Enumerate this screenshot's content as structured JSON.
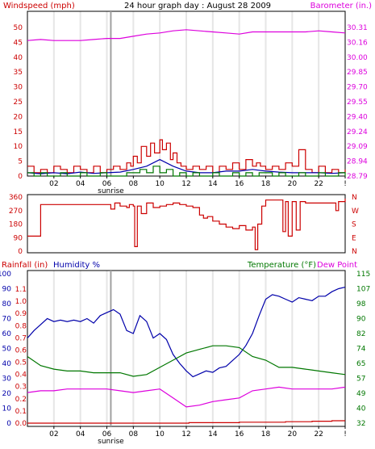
{
  "title": "24 hour graph day : August 28 2009",
  "colors": {
    "red": "#cc0000",
    "blue": "#0000aa",
    "green": "#007700",
    "magenta": "#dd00dd",
    "sunrise_bar": "#a0a0a0",
    "grid": "#e6e6e6",
    "frame": "#000000"
  },
  "x_axis": {
    "range": [
      0,
      24
    ],
    "tick_labels": [
      "02",
      "04",
      "06",
      "08",
      "10",
      "12",
      "14",
      "16",
      "18",
      "20",
      "22",
      "!"
    ],
    "tick_hours": [
      2,
      4,
      6,
      8,
      10,
      12,
      14,
      16,
      18,
      20,
      22,
      24
    ],
    "sunrise_label": "sunrise",
    "sunrise_hour": 6.3
  },
  "chart_data": [
    {
      "type": "line",
      "header_left": "Windspeed (mph)",
      "header_right": "Barometer (in.)",
      "left_axis": {
        "range": [
          0,
          50
        ],
        "tick_labels": [
          "50",
          "45",
          "40",
          "35",
          "30",
          "25",
          "20",
          "15",
          "10",
          "5",
          "0"
        ]
      },
      "right_axis": {
        "range": [
          28.79,
          30.31
        ],
        "tick_labels": [
          "30.31",
          "30.16",
          "30.00",
          "29.85",
          "29.70",
          "29.55",
          "29.40",
          "29.24",
          "29.09",
          "28.94",
          "28.79"
        ]
      },
      "grid": "vertical",
      "series": [
        {
          "axis": "left",
          "color": "red",
          "step": true,
          "x": [
            0,
            0.5,
            1,
            1.5,
            2,
            2.5,
            3,
            3.5,
            4,
            4.5,
            5,
            5.5,
            6,
            6.5,
            7,
            7.5,
            7.8,
            8,
            8.3,
            8.6,
            9,
            9.3,
            9.6,
            10,
            10.2,
            10.5,
            10.8,
            11,
            11.3,
            11.6,
            12,
            12.5,
            13,
            13.5,
            14,
            14.5,
            15,
            15.5,
            16,
            16.5,
            17,
            17.3,
            17.6,
            18,
            18.5,
            19,
            19.5,
            20,
            20.5,
            21,
            21.5,
            22,
            22.5,
            23,
            23.5,
            24
          ],
          "y": [
            3,
            1,
            2,
            1,
            3,
            2,
            1,
            3,
            2,
            1,
            3,
            1,
            2,
            3,
            2,
            4,
            3,
            6,
            4,
            9,
            6,
            10,
            7,
            11,
            8,
            10,
            5,
            7,
            4,
            3,
            2,
            3,
            2,
            3,
            1,
            3,
            2,
            4,
            2,
            5,
            3,
            4,
            3,
            2,
            3,
            2,
            4,
            3,
            8,
            2,
            1,
            3,
            1,
            2,
            1,
            2
          ]
        },
        {
          "axis": "left",
          "color": "blue",
          "step": false,
          "x": [
            0,
            1,
            2,
            3,
            4,
            5,
            6,
            7,
            8,
            9,
            10,
            11,
            12,
            13,
            14,
            15,
            16,
            17,
            18,
            19,
            20,
            21,
            22,
            23,
            24
          ],
          "y": [
            1,
            0.7,
            1,
            0.7,
            1.2,
            0.8,
            1,
            1.2,
            2,
            3,
            5,
            3,
            1.5,
            1,
            1,
            1.5,
            1.5,
            2,
            1.5,
            1.2,
            1,
            1,
            1,
            0.8,
            1
          ]
        },
        {
          "axis": "left",
          "color": "green",
          "step": true,
          "x": [
            0,
            0.5,
            1,
            1.5,
            2,
            2.5,
            3,
            3.5,
            4,
            4.5,
            5,
            5.5,
            6,
            6.5,
            7,
            7.5,
            8,
            8.5,
            9,
            9.5,
            10,
            10.5,
            11,
            11.5,
            12,
            12.5,
            13,
            13.5,
            14,
            14.5,
            15,
            15.5,
            16,
            16.5,
            17,
            17.5,
            18,
            18.5,
            19,
            19.5,
            20,
            20.5,
            21,
            21.5,
            22,
            22.5,
            23,
            23.5,
            24
          ],
          "y": [
            1,
            0,
            1,
            0,
            0,
            1,
            0,
            0,
            1,
            0,
            0,
            1,
            0,
            0,
            0,
            1,
            1,
            2,
            1,
            3,
            1,
            2,
            0,
            1,
            0,
            1,
            0,
            0,
            1,
            0,
            0,
            1,
            0,
            1,
            0,
            1,
            1,
            0,
            1,
            0,
            0,
            1,
            0,
            0,
            1,
            0,
            0,
            1,
            0
          ]
        },
        {
          "axis": "right",
          "color": "magenta",
          "step": false,
          "x": [
            0,
            1,
            2,
            3,
            4,
            5,
            6,
            7,
            8,
            9,
            10,
            11,
            12,
            13,
            14,
            15,
            16,
            17,
            18,
            19,
            20,
            21,
            22,
            23,
            24
          ],
          "y": [
            30.04,
            30.05,
            30.04,
            30.04,
            30.04,
            30.05,
            30.06,
            30.06,
            30.08,
            30.1,
            30.11,
            30.13,
            30.14,
            30.13,
            30.12,
            30.11,
            30.1,
            30.12,
            30.12,
            30.12,
            30.12,
            30.12,
            30.13,
            30.12,
            30.11
          ]
        }
      ]
    },
    {
      "type": "line",
      "left_axis": {
        "range": [
          0,
          360
        ],
        "tick_labels": [
          "360",
          "270",
          "180",
          "90",
          "0"
        ]
      },
      "right_axis": {
        "tick_labels": [
          "N",
          "W",
          "S",
          "E",
          "N"
        ]
      },
      "grid": "none",
      "series": [
        {
          "axis": "left",
          "color": "red",
          "step": true,
          "x": [
            0,
            0.5,
            1,
            1.5,
            2,
            3,
            4,
            5,
            6,
            6.3,
            6.6,
            7,
            7.5,
            7.7,
            8,
            8.1,
            8.3,
            8.6,
            9,
            9.5,
            10,
            10.5,
            11,
            11.5,
            12,
            12.5,
            13,
            13.3,
            13.6,
            14,
            14.5,
            15,
            15.5,
            16,
            16.5,
            17,
            17.2,
            17.4,
            17.7,
            18,
            18.5,
            19,
            19.3,
            19.5,
            19.7,
            20,
            20.3,
            20.6,
            21,
            21.5,
            22,
            22.5,
            23,
            23.3,
            23.5,
            23.8,
            24
          ],
          "y": [
            100,
            100,
            310,
            310,
            310,
            310,
            310,
            310,
            310,
            280,
            320,
            300,
            290,
            310,
            300,
            30,
            300,
            250,
            320,
            290,
            300,
            310,
            320,
            310,
            300,
            290,
            240,
            220,
            230,
            200,
            180,
            160,
            150,
            170,
            140,
            160,
            10,
            180,
            300,
            340,
            340,
            340,
            130,
            330,
            100,
            330,
            140,
            330,
            320,
            320,
            320,
            320,
            320,
            270,
            330,
            330,
            350
          ]
        }
      ]
    },
    {
      "type": "line",
      "header_left": "Rainfall (in)",
      "header_mid": "Humidity %",
      "header_right": "Temperature (°F)",
      "header_right2": "Dew Point",
      "rain_axis": {
        "range": [
          0,
          1.1
        ],
        "tick_labels": [
          "1.1",
          "1.0",
          "0.9",
          "0.8",
          "0.7",
          "0.6",
          "0.5",
          "0.4",
          "0.3",
          "0.2",
          "0.1",
          "0.0"
        ]
      },
      "humidity_axis": {
        "range": [
          0,
          100
        ],
        "tick_labels": [
          "100",
          "90",
          "80",
          "70",
          "60",
          "50",
          "40",
          "30",
          "20",
          "10",
          "0"
        ]
      },
      "temp_axis": {
        "range": [
          32,
          115
        ],
        "tick_labels": [
          "115",
          "107",
          "98",
          "90",
          "82",
          "74",
          "65",
          "57",
          "49",
          "40",
          "32"
        ]
      },
      "grid": "vertical",
      "series": [
        {
          "axis": "humidity",
          "color": "blue",
          "step": false,
          "x": [
            0,
            0.5,
            1,
            1.5,
            2,
            2.5,
            3,
            3.5,
            4,
            4.5,
            5,
            5.5,
            6,
            6.5,
            7,
            7.5,
            8,
            8.5,
            9,
            9.5,
            10,
            10.5,
            11,
            11.5,
            12,
            12.5,
            13,
            13.5,
            14,
            14.5,
            15,
            15.5,
            16,
            16.5,
            17,
            17.5,
            18,
            18.5,
            19,
            19.5,
            20,
            20.5,
            21,
            21.5,
            22,
            22.5,
            23,
            23.5,
            24
          ],
          "y": [
            57,
            62,
            66,
            70,
            68,
            69,
            68,
            69,
            68,
            70,
            67,
            72,
            74,
            76,
            73,
            62,
            60,
            72,
            68,
            57,
            60,
            56,
            46,
            40,
            35,
            31,
            33,
            35,
            34,
            37,
            38,
            42,
            46,
            52,
            60,
            72,
            83,
            86,
            85,
            83,
            81,
            84,
            83,
            82,
            85,
            85,
            88,
            90,
            91
          ]
        },
        {
          "axis": "temp",
          "color": "green",
          "step": false,
          "x": [
            0,
            1,
            2,
            3,
            4,
            5,
            6,
            7,
            8,
            9,
            10,
            11,
            12,
            13,
            14,
            15,
            16,
            17,
            18,
            19,
            20,
            21,
            22,
            23,
            24
          ],
          "y": [
            69,
            64,
            62,
            61,
            61,
            60,
            60,
            60,
            58,
            59,
            63,
            67,
            71,
            73,
            75,
            75,
            74,
            69,
            67,
            63,
            63,
            62,
            61,
            60,
            59
          ]
        },
        {
          "axis": "temp",
          "color": "magenta",
          "step": false,
          "x": [
            0,
            1,
            2,
            3,
            4,
            5,
            6,
            7,
            8,
            9,
            10,
            11,
            12,
            13,
            14,
            15,
            16,
            17,
            18,
            19,
            20,
            21,
            22,
            23,
            24
          ],
          "y": [
            49,
            50,
            50,
            51,
            51,
            51,
            51,
            50,
            49,
            50,
            51,
            46,
            41,
            42,
            44,
            45,
            46,
            50,
            51,
            52,
            51,
            51,
            51,
            51,
            52
          ]
        },
        {
          "axis": "rain",
          "color": "red",
          "step": true,
          "x": [
            0,
            12,
            12.2,
            15.5,
            16,
            19,
            19.5,
            21,
            21.5,
            22.5,
            23,
            24
          ],
          "y": [
            0,
            0,
            0.004,
            0.004,
            0.008,
            0.008,
            0.012,
            0.012,
            0.016,
            0.016,
            0.02,
            0.02
          ]
        }
      ]
    }
  ]
}
